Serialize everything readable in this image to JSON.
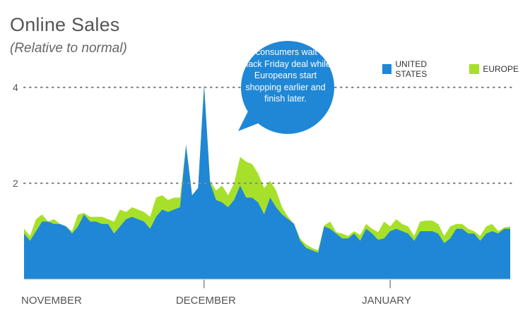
{
  "colors": {
    "us": "#1f87d6",
    "europe": "#a7e02a",
    "grid": "#888888",
    "callout": "#1f87d6"
  },
  "chart_data": {
    "type": "area",
    "title": "Online Sales",
    "subtitle": "(Relative to normal)",
    "annotation": "US consumers wait for Black Friday deal while Europeans start shopping earlier and finish later.",
    "ylim": [
      0,
      4
    ],
    "yticks": [
      2,
      4
    ],
    "x_labels": [
      {
        "label": "NOVEMBER",
        "x": 0
      },
      {
        "label": "DECEMBER",
        "x": 30
      },
      {
        "label": "JANUARY",
        "x": 61
      }
    ],
    "legend": [
      {
        "name": "UNITED STATES",
        "color": "#1f87d6"
      },
      {
        "name": "EUROPE",
        "color": "#a7e02a"
      }
    ],
    "series": [
      {
        "name": "UNITED STATES",
        "values": [
          0.95,
          0.8,
          1.0,
          1.2,
          1.2,
          1.15,
          1.15,
          1.1,
          0.95,
          1.1,
          1.35,
          1.2,
          1.2,
          1.15,
          1.15,
          0.95,
          1.1,
          1.25,
          1.3,
          1.25,
          1.2,
          1.05,
          1.3,
          1.45,
          1.4,
          1.45,
          1.5,
          2.8,
          1.75,
          1.9,
          4.05,
          2.0,
          1.65,
          1.6,
          1.5,
          1.65,
          1.95,
          1.7,
          1.7,
          1.6,
          1.35,
          1.7,
          1.5,
          1.35,
          1.25,
          1.15,
          0.8,
          0.65,
          0.6,
          0.55,
          1.1,
          1.05,
          0.95,
          0.85,
          0.85,
          0.95,
          0.8,
          1.05,
          0.95,
          0.82,
          0.85,
          1.0,
          1.05,
          1.0,
          0.95,
          0.8,
          1.0,
          1.0,
          1.0,
          0.95,
          0.75,
          0.85,
          1.05,
          1.05,
          0.95,
          0.95,
          0.8,
          0.95,
          1.0,
          0.95,
          1.05,
          1.05
        ]
      },
      {
        "name": "EUROPE",
        "values": [
          1.05,
          0.9,
          1.25,
          1.35,
          1.2,
          1.25,
          1.15,
          1.1,
          1.0,
          1.35,
          1.38,
          1.3,
          1.3,
          1.3,
          1.25,
          1.2,
          1.45,
          1.4,
          1.5,
          1.45,
          1.4,
          1.3,
          1.7,
          1.75,
          1.65,
          1.7,
          1.7,
          2.8,
          1.75,
          1.9,
          4.05,
          2.05,
          1.85,
          1.95,
          1.75,
          2.0,
          2.55,
          2.45,
          2.4,
          2.2,
          1.9,
          2.05,
          1.85,
          1.5,
          1.3,
          1.15,
          0.85,
          0.72,
          0.65,
          0.6,
          1.12,
          1.2,
          0.98,
          0.95,
          0.9,
          1.0,
          0.92,
          1.15,
          1.05,
          0.98,
          1.2,
          1.1,
          1.25,
          1.15,
          1.1,
          0.9,
          1.2,
          1.22,
          1.22,
          1.15,
          0.9,
          1.1,
          1.15,
          1.15,
          1.05,
          1.0,
          0.9,
          1.1,
          1.15,
          1.0,
          1.08,
          1.1
        ]
      }
    ]
  }
}
